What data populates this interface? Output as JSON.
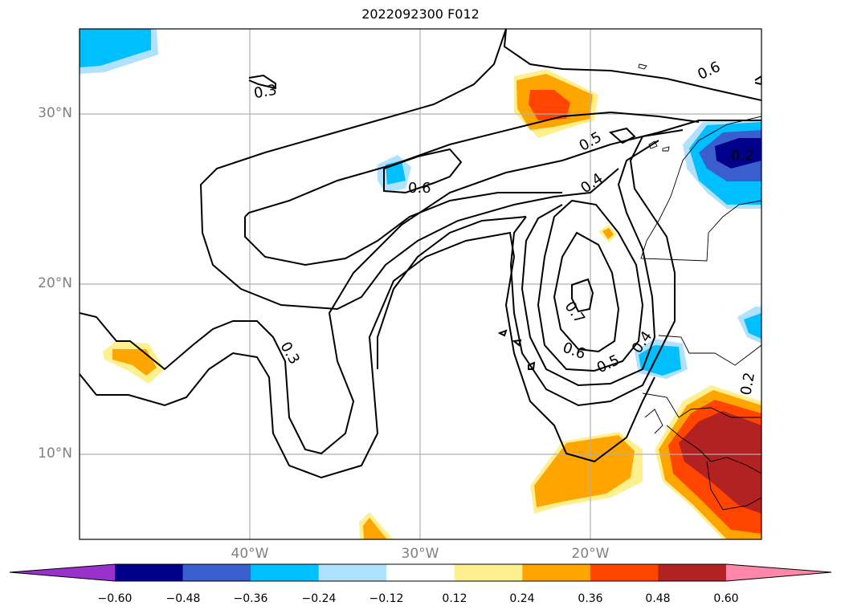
{
  "title": "2022092300 F012",
  "map": {
    "projection": "lat-lon",
    "lon_range": [
      -50,
      -10
    ],
    "lat_range": [
      5,
      35
    ],
    "gridlines": true,
    "lat_labels": [
      "30°N",
      "20°N",
      "10°N"
    ],
    "lon_labels": [
      "40°W",
      "30°W",
      "20°W"
    ],
    "contour_labels": [
      "0.3",
      "0.6",
      "0.5",
      "0.4",
      "0.6",
      "0.7",
      "0.6",
      "0.5",
      "0.4",
      "0.3",
      "0.2",
      "0.2"
    ]
  },
  "colorbar": {
    "extend": "both",
    "tick_labels": [
      "−0.60",
      "−0.48",
      "−0.36",
      "−0.24",
      "−0.12",
      "0.12",
      "0.24",
      "0.36",
      "0.48",
      "0.60"
    ],
    "colors": [
      "#9932cc",
      "#00008b",
      "#3a5fcd",
      "#00bfff",
      "#b0e2ff",
      "#ffffff",
      "#fff08f",
      "#ffa500",
      "#ff4500",
      "#b22222",
      "#ff88aa"
    ]
  }
}
